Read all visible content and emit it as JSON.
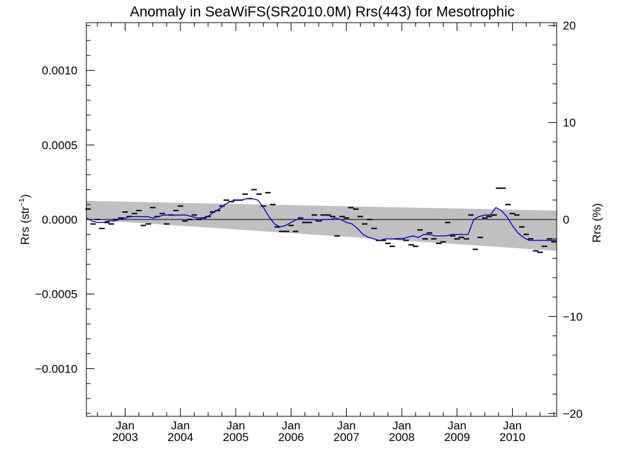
{
  "chart_data": {
    "type": "line",
    "title": "Anomaly in SeaWiFS(SR2010.0M) Rrs(443) for Mesotrophic",
    "ylabel_left": "Rrs (str",
    "ylabel_left_sup": "−1",
    "ylabel_left_end": ")",
    "ylabel_right": "Rrs (%)",
    "xlim": [
      2002.3,
      2010.8
    ],
    "ylim_left": [
      -0.00132,
      0.00132
    ],
    "ylim_right": [
      -20.3,
      20.3
    ],
    "grid": false,
    "legend": "none",
    "x_ticks": [
      {
        "x": 2003.0,
        "month": "Jan",
        "year": "2003"
      },
      {
        "x": 2004.0,
        "month": "Jan",
        "year": "2004"
      },
      {
        "x": 2005.0,
        "month": "Jan",
        "year": "2005"
      },
      {
        "x": 2006.0,
        "month": "Jan",
        "year": "2006"
      },
      {
        "x": 2007.0,
        "month": "Jan",
        "year": "2007"
      },
      {
        "x": 2008.0,
        "month": "Jan",
        "year": "2008"
      },
      {
        "x": 2009.0,
        "month": "Jan",
        "year": "2009"
      },
      {
        "x": 2010.0,
        "month": "Jan",
        "year": "2010"
      }
    ],
    "y_ticks_left": [
      {
        "value": 0.001,
        "label": "0.0010"
      },
      {
        "value": 0.0005,
        "label": "0.0005"
      },
      {
        "value": 0.0,
        "label": "0.0000"
      },
      {
        "value": -0.0005,
        "label": "−0.0005"
      },
      {
        "value": -0.001,
        "label": "−0.0010"
      }
    ],
    "y_ticks_right": [
      {
        "value": 20,
        "label": "20"
      },
      {
        "value": 10,
        "label": "10"
      },
      {
        "value": 0,
        "label": "0"
      },
      {
        "value": -10,
        "label": "−10"
      },
      {
        "value": -20,
        "label": "−20"
      }
    ],
    "zero_line": 0,
    "uncertainty_band": {
      "color": "#c0c0c0",
      "x": [
        2002.3,
        2010.8
      ],
      "upper": [
        0.000125,
        6e-05
      ],
      "lower": [
        0.0,
        -0.00021
      ]
    },
    "monthly_points": {
      "color": "#000000",
      "x": [
        2002.33,
        2002.42,
        2002.5,
        2002.58,
        2002.67,
        2002.75,
        2002.83,
        2002.92,
        2003.0,
        2003.08,
        2003.17,
        2003.25,
        2003.33,
        2003.42,
        2003.5,
        2003.58,
        2003.67,
        2003.75,
        2003.83,
        2003.92,
        2004.0,
        2004.08,
        2004.17,
        2004.25,
        2004.33,
        2004.42,
        2004.5,
        2004.58,
        2004.67,
        2004.75,
        2004.83,
        2004.92,
        2005.0,
        2005.08,
        2005.17,
        2005.25,
        2005.33,
        2005.42,
        2005.5,
        2005.58,
        2005.67,
        2005.75,
        2005.83,
        2005.92,
        2006.0,
        2006.08,
        2006.17,
        2006.25,
        2006.33,
        2006.42,
        2006.5,
        2006.58,
        2006.67,
        2006.75,
        2006.83,
        2006.92,
        2007.0,
        2007.08,
        2007.17,
        2007.25,
        2007.33,
        2007.42,
        2007.5,
        2007.58,
        2007.67,
        2007.75,
        2007.83,
        2007.92,
        2008.0,
        2008.08,
        2008.17,
        2008.25,
        2008.33,
        2008.42,
        2008.5,
        2008.58,
        2008.67,
        2008.75,
        2008.83,
        2008.92,
        2009.0,
        2009.08,
        2009.17,
        2009.25,
        2009.33,
        2009.42,
        2009.5,
        2009.58,
        2009.67,
        2009.75,
        2009.83,
        2009.92,
        2010.0,
        2010.08,
        2010.17,
        2010.25,
        2010.33,
        2010.42,
        2010.5,
        2010.58,
        2010.67,
        2010.75
      ],
      "y": [
        7e-05,
        -3e-05,
        0.0,
        -6e-05,
        -2e-05,
        -3e-05,
        0.0,
        1e-05,
        5e-05,
        2e-05,
        4e-05,
        6e-05,
        -4e-05,
        -3e-05,
        8e-05,
        2e-05,
        4e-05,
        -3e-05,
        3e-05,
        6e-05,
        9e-05,
        -1e-05,
        0.0,
        3e-05,
        0.0,
        1e-05,
        2e-05,
        5e-05,
        6e-05,
        9e-05,
        0.00013,
        0.00012,
        0.00013,
        0.00013,
        0.00017,
        0.00014,
        0.0002,
        0.00017,
        9e-05,
        0.00018,
        0.0001,
        -5e-05,
        -8e-05,
        -8e-05,
        -4e-05,
        -8e-05,
        1e-05,
        -2e-05,
        -2e-05,
        3e-05,
        -1e-05,
        3e-05,
        3e-05,
        2e-05,
        -0.00011,
        2e-05,
        1e-05,
        8e-05,
        7e-05,
        2e-05,
        -3e-05,
        0.0,
        -6e-05,
        -0.00014,
        -0.00014,
        -0.00016,
        -0.00018,
        -0.00013,
        -0.00013,
        -0.00014,
        -0.00017,
        -0.00018,
        -7e-05,
        -0.00013,
        -9e-05,
        -0.00013,
        -0.00016,
        -0.00015,
        -2e-05,
        -0.00011,
        -0.00013,
        -0.00012,
        -0.00013,
        3e-05,
        -0.0002,
        -0.00012,
        1e-05,
        2e-05,
        3e-05,
        0.00021,
        0.00021,
        0.0001,
        4e-05,
        3e-05,
        -5e-05,
        -0.0001,
        -0.00013,
        -0.00021,
        -0.00022,
        -0.00018,
        -0.00013,
        -0.00015
      ]
    },
    "series": [
      {
        "color": "#0000dd",
        "x": [
          2002.3,
          2002.4,
          2002.5,
          2002.6,
          2002.7,
          2002.8,
          2002.9,
          2003.0,
          2003.1,
          2003.2,
          2003.3,
          2003.4,
          2003.5,
          2003.6,
          2003.7,
          2003.8,
          2003.9,
          2004.0,
          2004.1,
          2004.2,
          2004.3,
          2004.4,
          2004.5,
          2004.6,
          2004.7,
          2004.8,
          2004.9,
          2005.0,
          2005.1,
          2005.2,
          2005.3,
          2005.4,
          2005.5,
          2005.6,
          2005.7,
          2005.8,
          2005.9,
          2006.0,
          2006.1,
          2006.2,
          2006.3,
          2006.4,
          2006.5,
          2006.6,
          2006.7,
          2006.8,
          2006.9,
          2007.0,
          2007.1,
          2007.2,
          2007.3,
          2007.4,
          2007.5,
          2007.6,
          2007.7,
          2007.8,
          2007.9,
          2008.0,
          2008.1,
          2008.2,
          2008.3,
          2008.4,
          2008.5,
          2008.6,
          2008.7,
          2008.8,
          2008.9,
          2009.0,
          2009.1,
          2009.2,
          2009.3,
          2009.4,
          2009.5,
          2009.6,
          2009.7,
          2009.8,
          2009.9,
          2010.0,
          2010.1,
          2010.2,
          2010.3,
          2010.4,
          2010.5,
          2010.6,
          2010.7,
          2010.8
        ],
        "y": [
          1e-05,
          -1e-05,
          -2e-05,
          -2e-05,
          -1e-05,
          -1e-05,
          0.0,
          1e-05,
          2e-05,
          2e-05,
          2e-05,
          2e-05,
          1e-05,
          2e-05,
          3e-05,
          3e-05,
          3e-05,
          3e-05,
          3e-05,
          2e-05,
          1e-05,
          1e-05,
          2e-05,
          5e-05,
          7e-05,
          0.0001,
          0.00012,
          0.00013,
          0.00013,
          0.00014,
          0.00014,
          0.00013,
          8e-05,
          2e-05,
          -3e-05,
          -5e-05,
          -4e-05,
          -2e-05,
          0.0,
          0.0,
          0.0,
          0.0,
          -1e-05,
          0.0,
          0.0,
          1e-05,
          0.0,
          -2e-05,
          -3e-05,
          -6e-05,
          -0.0001,
          -0.00012,
          -0.00013,
          -0.00014,
          -0.00013,
          -0.00013,
          -0.00013,
          -0.00013,
          -0.00012,
          -0.00011,
          -0.00012,
          -0.0001,
          -0.0001,
          -0.00011,
          -0.00011,
          -0.00011,
          -0.0001,
          -0.0001,
          -0.0001,
          -0.0001,
          0.0,
          2e-05,
          3e-05,
          3e-05,
          8e-05,
          6e-05,
          2e-05,
          -4e-05,
          -9e-05,
          -0.00012,
          -0.00014,
          -0.00014,
          -0.00014,
          -0.00014,
          -0.00014,
          -0.00014
        ]
      }
    ]
  }
}
